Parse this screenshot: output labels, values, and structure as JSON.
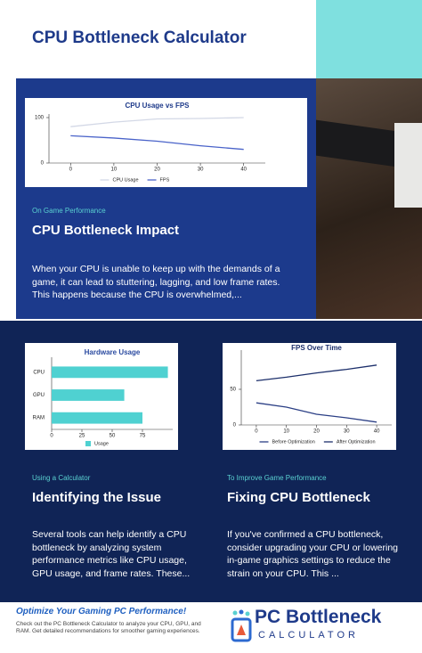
{
  "header": {
    "title": "CPU Bottleneck Calculator"
  },
  "impact": {
    "kicker": "On Game Performance",
    "heading": "CPU Bottleneck Impact",
    "text": "When your CPU is unable to keep up with the demands of a game, it can lead to stuttering, lagging, and low frame rates. This happens because the CPU is overwhelmed,..."
  },
  "identify": {
    "kicker": "Using a Calculator",
    "heading": "Identifying the Issue",
    "text": "Several tools can help identify a CPU bottleneck by analyzing system performance metrics like CPU usage, GPU usage, and frame rates. These..."
  },
  "fix": {
    "kicker": "To Improve Game Performance",
    "heading": "Fixing CPU Bottleneck",
    "text": "If you've confirmed a CPU bottleneck, consider upgrading your CPU or lowering in-game graphics settings to reduce the strain on your CPU. This ..."
  },
  "footer": {
    "title": "Optimize Your Gaming PC Performance!",
    "text": "Check out the PC Bottleneck Calculator to analyze your CPU, GPU, and RAM. Get detailed recommendations for smoother gaming experiences.",
    "logo_main": "PC Bottleneck",
    "logo_sub": "CALCULATOR"
  },
  "chart_data": [
    {
      "type": "line",
      "title": "CPU Usage vs FPS",
      "x": [
        0,
        10,
        20,
        30,
        40
      ],
      "series": [
        {
          "name": "CPU Usage",
          "color": "#d3d8e6",
          "values": [
            80,
            90,
            97,
            98,
            100
          ]
        },
        {
          "name": "FPS",
          "color": "#4a63c9",
          "values": [
            60,
            55,
            48,
            38,
            30
          ]
        }
      ],
      "xlim": [
        -5,
        45
      ],
      "xticks": [
        0,
        10,
        20,
        30,
        40
      ],
      "ylim": [
        0,
        100
      ],
      "yticks": [
        0,
        100
      ],
      "grid": false
    },
    {
      "type": "bar",
      "orientation": "horizontal",
      "title": "Hardware Usage",
      "categories": [
        "CPU",
        "GPU",
        "RAM"
      ],
      "series": [
        {
          "name": "Usage",
          "color": "#4fd1d1",
          "values": [
            96,
            60,
            75
          ]
        }
      ],
      "xlim": [
        0,
        100
      ],
      "xticks": [
        0,
        25,
        50,
        75
      ],
      "grid": false
    },
    {
      "type": "line",
      "title": "FPS Over Time",
      "x": [
        0,
        10,
        20,
        30,
        40
      ],
      "series": [
        {
          "name": "Before Optimization",
          "color": "#2b3f85",
          "values": [
            31,
            25,
            15,
            10,
            4
          ]
        },
        {
          "name": "After Optimization",
          "color": "#1c2f6b",
          "values": [
            62,
            67,
            73,
            78,
            84
          ]
        }
      ],
      "xlim": [
        -5,
        45
      ],
      "xticks": [
        0,
        10,
        20,
        30,
        40
      ],
      "ylim": [
        0,
        100
      ],
      "yticks": [
        0,
        50
      ],
      "grid": false
    }
  ]
}
